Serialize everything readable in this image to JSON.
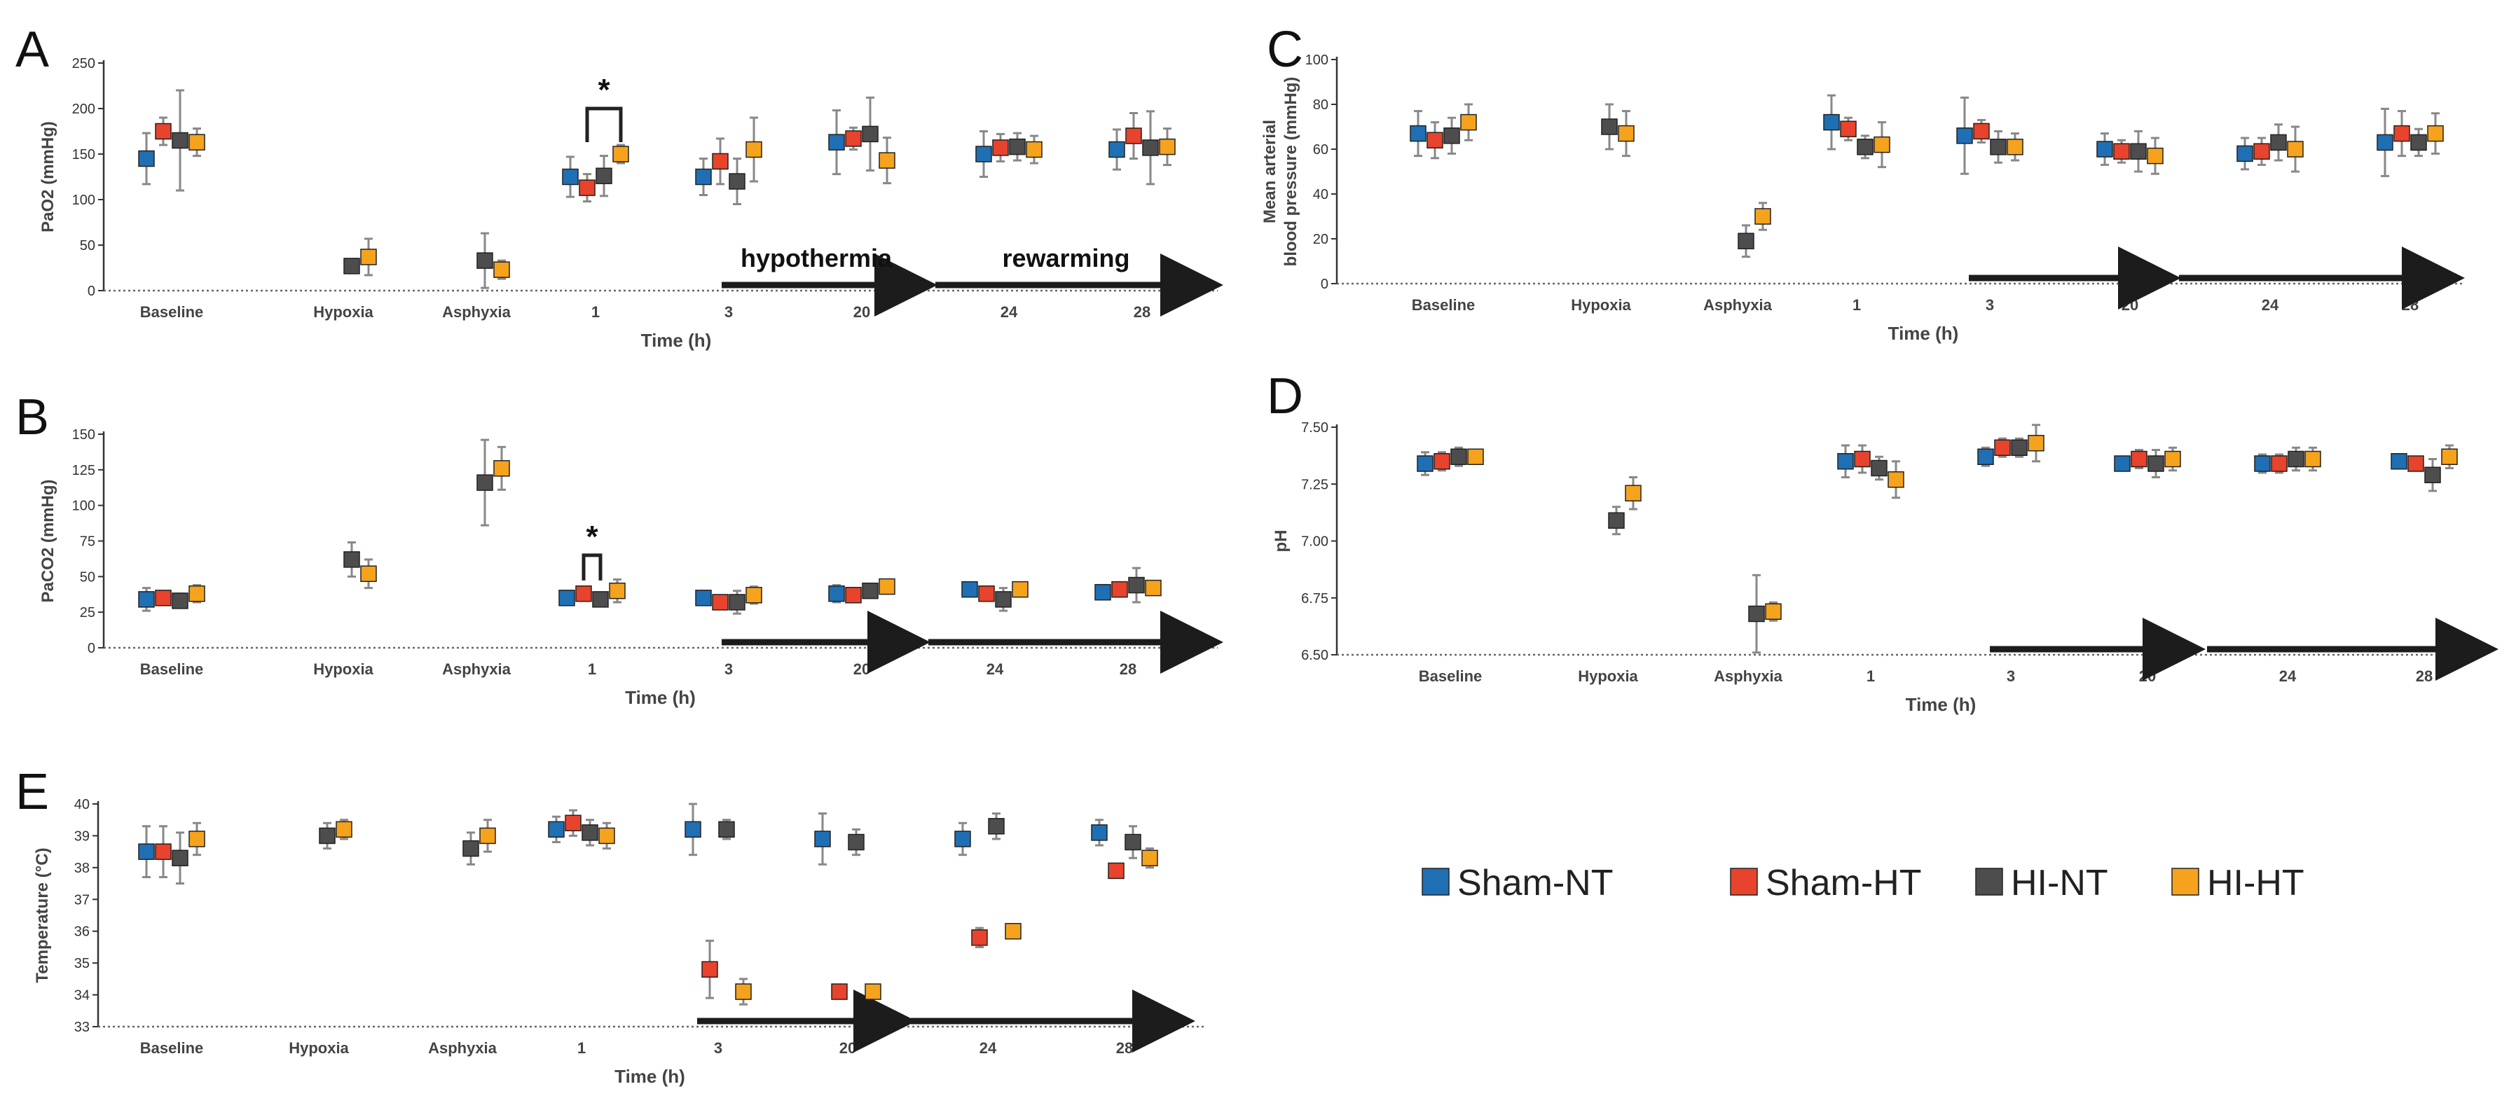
{
  "legend": [
    {
      "name": "Sham-NT",
      "color": "#1f6fb4"
    },
    {
      "name": "Sham-HT",
      "color": "#e8432c"
    },
    {
      "name": "HI-NT",
      "color": "#4d4d4d"
    },
    {
      "name": "HI-HT",
      "color": "#f5a21d"
    }
  ],
  "chart_data": [
    {
      "id": "A",
      "type": "scatter",
      "panel_label": "A",
      "ylabel": "PaO2 (mmHg)",
      "xlabel": "Time (h)",
      "ylim": [
        0,
        250
      ],
      "yticks": [
        0,
        50,
        100,
        150,
        200,
        250
      ],
      "categories": [
        "Baseline",
        "Hypoxia",
        "Asphyxia",
        "1",
        "3",
        "20",
        "24",
        "28"
      ],
      "arrow_labels": {
        "hypothermia": "hypothermia",
        "rewarming": "rewarming"
      },
      "significance": [
        {
          "label": "*",
          "category": "1",
          "between": [
            "Sham-HT",
            "HI-HT"
          ]
        }
      ],
      "series": [
        {
          "name": "Sham-NT",
          "values": [
            [
              145,
              28
            ],
            null,
            null,
            [
              125,
              22
            ],
            [
              125,
              20
            ],
            [
              163,
              35
            ],
            [
              150,
              25
            ],
            [
              155,
              22
            ]
          ]
        },
        {
          "name": "Sham-HT",
          "values": [
            [
              175,
              15
            ],
            null,
            null,
            [
              113,
              15
            ],
            [
              142,
              25
            ],
            [
              167,
              12
            ],
            [
              157,
              15
            ],
            [
              170,
              25
            ]
          ]
        },
        {
          "name": "HI-NT",
          "values": [
            [
              165,
              55
            ],
            [
              27,
              5
            ],
            [
              33,
              30
            ],
            [
              126,
              22
            ],
            [
              120,
              25
            ],
            [
              172,
              40
            ],
            [
              158,
              15
            ],
            [
              157,
              40
            ]
          ]
        },
        {
          "name": "HI-HT",
          "values": [
            [
              163,
              15
            ],
            [
              37,
              20
            ],
            [
              23,
              10
            ],
            [
              150,
              10
            ],
            [
              155,
              35
            ],
            [
              143,
              25
            ],
            [
              155,
              15
            ],
            [
              158,
              20
            ]
          ]
        }
      ]
    },
    {
      "id": "B",
      "type": "scatter",
      "panel_label": "B",
      "ylabel": "PaCO2 (mmHg)",
      "xlabel": "Time (h)",
      "ylim": [
        0,
        150
      ],
      "yticks": [
        0,
        25,
        50,
        75,
        100,
        125,
        150
      ],
      "categories": [
        "Baseline",
        "Hypoxia",
        "Asphyxia",
        "1",
        "3",
        "20",
        "24",
        "28"
      ],
      "significance": [
        {
          "label": "*",
          "category": "1",
          "between": [
            "Sham-HT",
            "HI-NT"
          ]
        }
      ],
      "series": [
        {
          "name": "Sham-NT",
          "values": [
            [
              34,
              8
            ],
            null,
            null,
            [
              35,
              3
            ],
            [
              35,
              5
            ],
            [
              38,
              6
            ],
            [
              41,
              4
            ],
            [
              39,
              4
            ]
          ]
        },
        {
          "name": "Sham-HT",
          "values": [
            [
              35,
              4
            ],
            null,
            null,
            [
              38,
              5
            ],
            [
              32,
              4
            ],
            [
              37,
              4
            ],
            [
              38,
              4
            ],
            [
              41,
              5
            ]
          ]
        },
        {
          "name": "HI-NT",
          "values": [
            [
              33,
              5
            ],
            [
              62,
              12
            ],
            [
              116,
              30
            ],
            [
              34,
              3
            ],
            [
              32,
              8
            ],
            [
              40,
              4
            ],
            [
              34,
              8
            ],
            [
              44,
              12
            ]
          ]
        },
        {
          "name": "HI-HT",
          "values": [
            [
              38,
              6
            ],
            [
              52,
              10
            ],
            [
              126,
              15
            ],
            [
              40,
              8
            ],
            [
              37,
              6
            ],
            [
              43,
              4
            ],
            [
              41,
              4
            ],
            [
              42,
              4
            ]
          ]
        }
      ]
    },
    {
      "id": "C",
      "type": "scatter",
      "panel_label": "C",
      "ylabel": "Mean arterial blood pressure (mmHg)",
      "xlabel": "Time (h)",
      "ylim": [
        0,
        100
      ],
      "yticks": [
        0,
        20,
        40,
        60,
        80,
        100
      ],
      "categories": [
        "Baseline",
        "Hypoxia",
        "Asphyxia",
        "1",
        "3",
        "20",
        "24",
        "28"
      ],
      "series": [
        {
          "name": "Sham-NT",
          "values": [
            [
              67,
              10
            ],
            null,
            null,
            [
              72,
              12
            ],
            [
              66,
              17
            ],
            [
              60,
              7
            ],
            [
              58,
              7
            ],
            [
              63,
              15
            ]
          ]
        },
        {
          "name": "Sham-HT",
          "values": [
            [
              64,
              8
            ],
            null,
            null,
            [
              69,
              5
            ],
            [
              68,
              5
            ],
            [
              59,
              5
            ],
            [
              59,
              6
            ],
            [
              67,
              10
            ]
          ]
        },
        {
          "name": "HI-NT",
          "values": [
            [
              66,
              8
            ],
            [
              70,
              10
            ],
            [
              19,
              7
            ],
            [
              61,
              5
            ],
            [
              61,
              7
            ],
            [
              59,
              9
            ],
            [
              63,
              8
            ],
            [
              63,
              6
            ]
          ]
        },
        {
          "name": "HI-HT",
          "values": [
            [
              72,
              8
            ],
            [
              67,
              10
            ],
            [
              30,
              6
            ],
            [
              62,
              10
            ],
            [
              61,
              6
            ],
            [
              57,
              8
            ],
            [
              60,
              10
            ],
            [
              67,
              9
            ]
          ]
        }
      ]
    },
    {
      "id": "D",
      "type": "scatter",
      "panel_label": "D",
      "ylabel": "pH",
      "xlabel": "Time (h)",
      "ylim": [
        6.5,
        7.5
      ],
      "yticks": [
        "6.50",
        "6.75",
        "7.00",
        "7.25",
        "7.50"
      ],
      "categories": [
        "Baseline",
        "Hypoxia",
        "Asphyxia",
        "1",
        "3",
        "20",
        "24",
        "28"
      ],
      "series": [
        {
          "name": "Sham-NT",
          "values": [
            [
              7.34,
              0.05
            ],
            null,
            null,
            [
              7.35,
              0.07
            ],
            [
              7.37,
              0.04
            ],
            [
              7.34,
              0.03
            ],
            [
              7.34,
              0.04
            ],
            [
              7.35,
              0.03
            ]
          ]
        },
        {
          "name": "Sham-HT",
          "values": [
            [
              7.35,
              0.04
            ],
            null,
            null,
            [
              7.36,
              0.06
            ],
            [
              7.41,
              0.04
            ],
            [
              7.36,
              0.04
            ],
            [
              7.34,
              0.04
            ],
            [
              7.34,
              0.03
            ]
          ]
        },
        {
          "name": "HI-NT",
          "values": [
            [
              7.37,
              0.04
            ],
            [
              7.09,
              0.06
            ],
            [
              6.68,
              0.17
            ],
            [
              7.32,
              0.05
            ],
            [
              7.41,
              0.04
            ],
            [
              7.34,
              0.06
            ],
            [
              7.36,
              0.05
            ],
            [
              7.29,
              0.07
            ]
          ]
        },
        {
          "name": "HI-HT",
          "values": [
            [
              7.37,
              0.03
            ],
            [
              7.21,
              0.07
            ],
            [
              6.69,
              0.04
            ],
            [
              7.27,
              0.08
            ],
            [
              7.43,
              0.08
            ],
            [
              7.36,
              0.05
            ],
            [
              7.36,
              0.05
            ],
            [
              7.37,
              0.05
            ]
          ]
        }
      ]
    },
    {
      "id": "E",
      "type": "scatter",
      "panel_label": "E",
      "ylabel": "Temperature (°C)",
      "xlabel": "Time (h)",
      "ylim": [
        33,
        40
      ],
      "yticks": [
        33,
        34,
        35,
        36,
        37,
        38,
        39,
        40
      ],
      "categories": [
        "Baseline",
        "Hypoxia",
        "Asphyxia",
        "1",
        "3",
        "20",
        "24",
        "28"
      ],
      "series": [
        {
          "name": "Sham-NT",
          "values": [
            [
              38.5,
              0.8
            ],
            null,
            null,
            [
              39.2,
              0.4
            ],
            [
              39.2,
              0.8
            ],
            [
              38.9,
              0.8
            ],
            [
              38.9,
              0.5
            ],
            [
              39.1,
              0.4
            ]
          ]
        },
        {
          "name": "Sham-HT",
          "values": [
            [
              38.5,
              0.8
            ],
            null,
            null,
            [
              39.4,
              0.4
            ],
            [
              34.8,
              0.9
            ],
            [
              34.1,
              0.1
            ],
            [
              35.8,
              0.3
            ],
            [
              37.9,
              0.2
            ]
          ]
        },
        {
          "name": "HI-NT",
          "values": [
            [
              38.3,
              0.8
            ],
            [
              39.0,
              0.4
            ],
            [
              38.6,
              0.5
            ],
            [
              39.1,
              0.4
            ],
            [
              39.2,
              0.3
            ],
            [
              38.8,
              0.4
            ],
            [
              39.3,
              0.4
            ],
            [
              38.8,
              0.5
            ]
          ]
        },
        {
          "name": "HI-HT",
          "values": [
            [
              38.9,
              0.5
            ],
            [
              39.2,
              0.3
            ],
            [
              39.0,
              0.5
            ],
            [
              39.0,
              0.4
            ],
            [
              34.1,
              0.4
            ],
            [
              34.1,
              0.1
            ],
            [
              36.0,
              0.1
            ],
            [
              38.3,
              0.3
            ]
          ]
        }
      ]
    }
  ]
}
